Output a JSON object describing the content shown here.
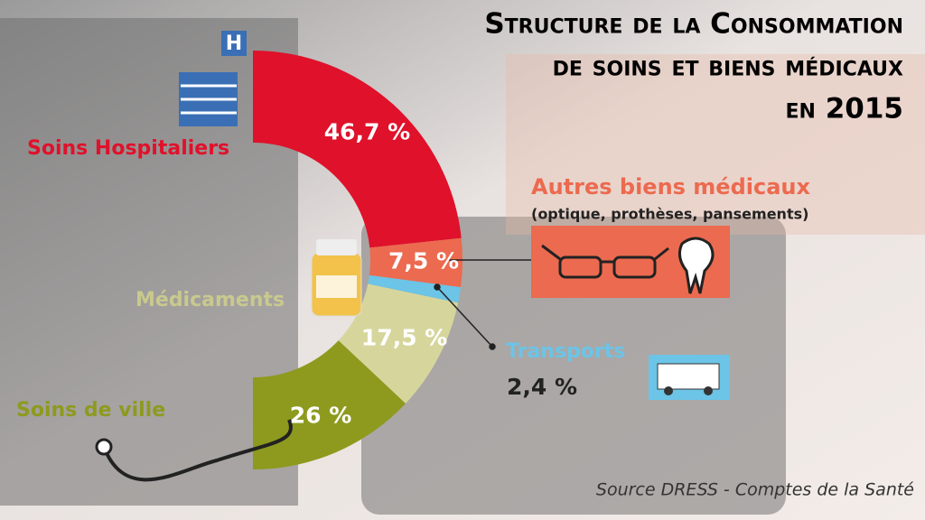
{
  "chart_data": {
    "type": "pie",
    "title": [
      "Structure de la Consommation",
      "de soins et biens médicaux",
      "en 2015"
    ],
    "categories": [
      "Soins Hospitaliers",
      "Autres biens médicaux",
      "Transports",
      "Médicaments",
      "Soins de ville"
    ],
    "values": [
      46.7,
      7.5,
      2.4,
      17.5,
      26
    ],
    "value_labels": [
      "46,7 %",
      "7,5 %",
      "2,4 %",
      "17,5 %",
      "26 %"
    ],
    "colors": [
      "#e0112b",
      "#ec6a4f",
      "#6cc4e6",
      "#d6d69c",
      "#8e9a1e"
    ],
    "annotation": "(optique, prothèses, pansements)",
    "source": "Source DRESS - Comptes de la Santé"
  }
}
